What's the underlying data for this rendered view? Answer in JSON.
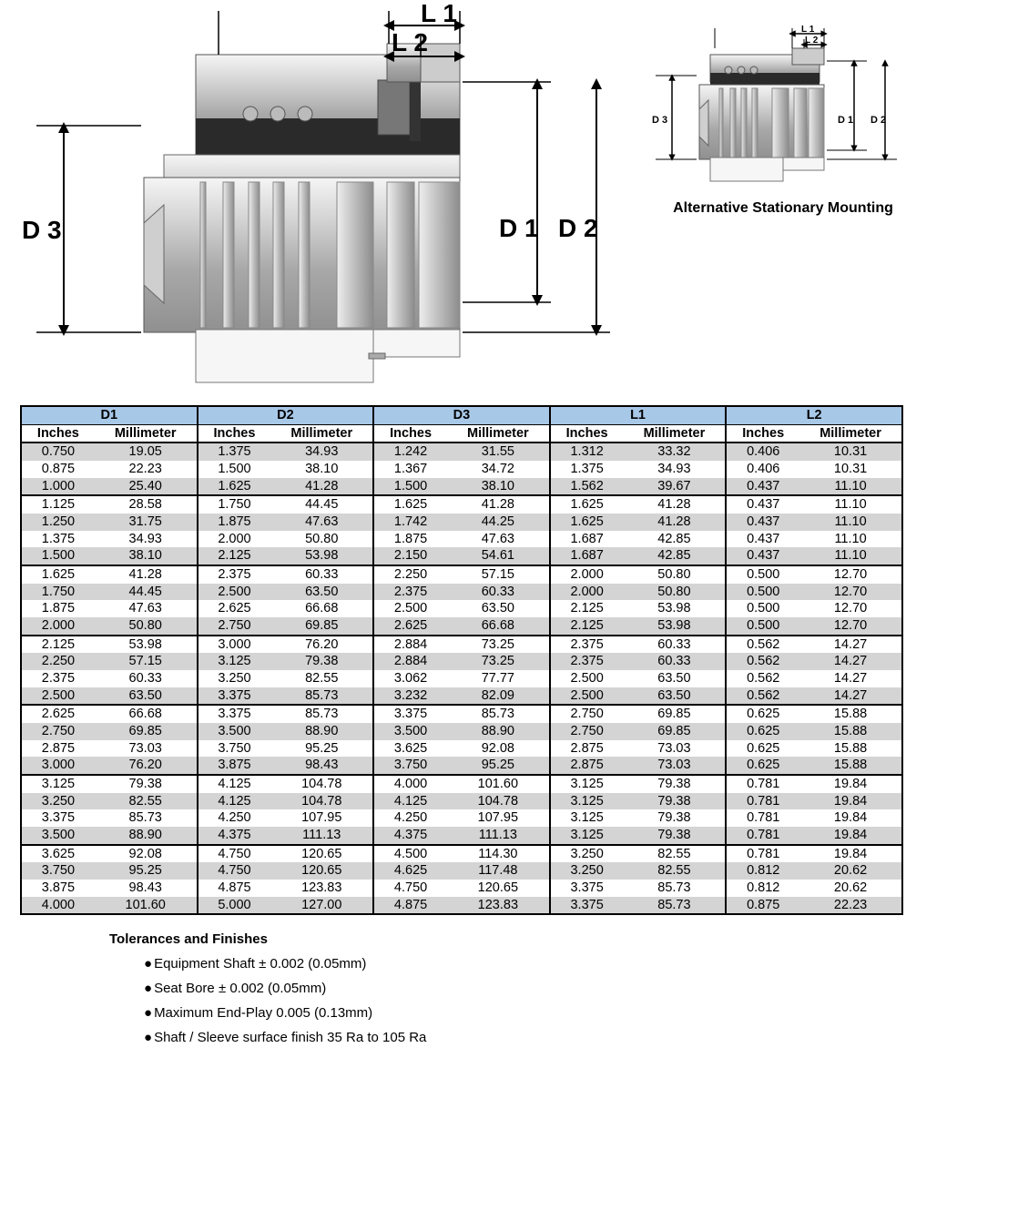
{
  "diagram": {
    "labels": {
      "D1": "D 1",
      "D2": "D 2",
      "D3": "D 3",
      "L1": "L 1",
      "L2": "L 2"
    },
    "alt_labels": {
      "D1": "D 1",
      "D2": "D 2",
      "D3": "D 3",
      "L1": "L 1",
      "L2": "L 2"
    },
    "alt_caption": "Alternative Stationary Mounting",
    "colors": {
      "metal_light": "#e8e8e8",
      "metal_mid": "#b8b8b8",
      "metal_dark": "#888888",
      "outline": "#555555",
      "black": "#000000"
    }
  },
  "table": {
    "header_bg": "#a8c8e8",
    "shaded_bg": "#d4d4d4",
    "columns": [
      "D1",
      "D2",
      "D3",
      "L1",
      "L2"
    ],
    "subcolumns": [
      "Inches",
      "Millimeter"
    ],
    "groups": [
      [
        [
          "0.750",
          "19.05",
          "1.375",
          "34.93",
          "1.242",
          "31.55",
          "1.312",
          "33.32",
          "0.406",
          "10.31"
        ],
        [
          "0.875",
          "22.23",
          "1.500",
          "38.10",
          "1.367",
          "34.72",
          "1.375",
          "34.93",
          "0.406",
          "10.31"
        ],
        [
          "1.000",
          "25.40",
          "1.625",
          "41.28",
          "1.500",
          "38.10",
          "1.562",
          "39.67",
          "0.437",
          "11.10"
        ]
      ],
      [
        [
          "1.125",
          "28.58",
          "1.750",
          "44.45",
          "1.625",
          "41.28",
          "1.625",
          "41.28",
          "0.437",
          "11.10"
        ],
        [
          "1.250",
          "31.75",
          "1.875",
          "47.63",
          "1.742",
          "44.25",
          "1.625",
          "41.28",
          "0.437",
          "11.10"
        ],
        [
          "1.375",
          "34.93",
          "2.000",
          "50.80",
          "1.875",
          "47.63",
          "1.687",
          "42.85",
          "0.437",
          "11.10"
        ],
        [
          "1.500",
          "38.10",
          "2.125",
          "53.98",
          "2.150",
          "54.61",
          "1.687",
          "42.85",
          "0.437",
          "11.10"
        ]
      ],
      [
        [
          "1.625",
          "41.28",
          "2.375",
          "60.33",
          "2.250",
          "57.15",
          "2.000",
          "50.80",
          "0.500",
          "12.70"
        ],
        [
          "1.750",
          "44.45",
          "2.500",
          "63.50",
          "2.375",
          "60.33",
          "2.000",
          "50.80",
          "0.500",
          "12.70"
        ],
        [
          "1.875",
          "47.63",
          "2.625",
          "66.68",
          "2.500",
          "63.50",
          "2.125",
          "53.98",
          "0.500",
          "12.70"
        ],
        [
          "2.000",
          "50.80",
          "2.750",
          "69.85",
          "2.625",
          "66.68",
          "2.125",
          "53.98",
          "0.500",
          "12.70"
        ]
      ],
      [
        [
          "2.125",
          "53.98",
          "3.000",
          "76.20",
          "2.884",
          "73.25",
          "2.375",
          "60.33",
          "0.562",
          "14.27"
        ],
        [
          "2.250",
          "57.15",
          "3.125",
          "79.38",
          "2.884",
          "73.25",
          "2.375",
          "60.33",
          "0.562",
          "14.27"
        ],
        [
          "2.375",
          "60.33",
          "3.250",
          "82.55",
          "3.062",
          "77.77",
          "2.500",
          "63.50",
          "0.562",
          "14.27"
        ],
        [
          "2.500",
          "63.50",
          "3.375",
          "85.73",
          "3.232",
          "82.09",
          "2.500",
          "63.50",
          "0.562",
          "14.27"
        ]
      ],
      [
        [
          "2.625",
          "66.68",
          "3.375",
          "85.73",
          "3.375",
          "85.73",
          "2.750",
          "69.85",
          "0.625",
          "15.88"
        ],
        [
          "2.750",
          "69.85",
          "3.500",
          "88.90",
          "3.500",
          "88.90",
          "2.750",
          "69.85",
          "0.625",
          "15.88"
        ],
        [
          "2.875",
          "73.03",
          "3.750",
          "95.25",
          "3.625",
          "92.08",
          "2.875",
          "73.03",
          "0.625",
          "15.88"
        ],
        [
          "3.000",
          "76.20",
          "3.875",
          "98.43",
          "3.750",
          "95.25",
          "2.875",
          "73.03",
          "0.625",
          "15.88"
        ]
      ],
      [
        [
          "3.125",
          "79.38",
          "4.125",
          "104.78",
          "4.000",
          "101.60",
          "3.125",
          "79.38",
          "0.781",
          "19.84"
        ],
        [
          "3.250",
          "82.55",
          "4.125",
          "104.78",
          "4.125",
          "104.78",
          "3.125",
          "79.38",
          "0.781",
          "19.84"
        ],
        [
          "3.375",
          "85.73",
          "4.250",
          "107.95",
          "4.250",
          "107.95",
          "3.125",
          "79.38",
          "0.781",
          "19.84"
        ],
        [
          "3.500",
          "88.90",
          "4.375",
          "111.13",
          "4.375",
          "111.13",
          "3.125",
          "79.38",
          "0.781",
          "19.84"
        ]
      ],
      [
        [
          "3.625",
          "92.08",
          "4.750",
          "120.65",
          "4.500",
          "114.30",
          "3.250",
          "82.55",
          "0.781",
          "19.84"
        ],
        [
          "3.750",
          "95.25",
          "4.750",
          "120.65",
          "4.625",
          "117.48",
          "3.250",
          "82.55",
          "0.812",
          "20.62"
        ],
        [
          "3.875",
          "98.43",
          "4.875",
          "123.83",
          "4.750",
          "120.65",
          "3.375",
          "85.73",
          "0.812",
          "20.62"
        ],
        [
          "4.000",
          "101.60",
          "5.000",
          "127.00",
          "4.875",
          "123.83",
          "3.375",
          "85.73",
          "0.875",
          "22.23"
        ]
      ]
    ]
  },
  "notes": {
    "title": "Tolerances and Finishes",
    "items": [
      "Equipment Shaft ± 0.002 (0.05mm)",
      "Seat Bore ± 0.002 (0.05mm)",
      "Maximum End-Play 0.005 (0.13mm)",
      "Shaft / Sleeve surface finish 35 Ra to 105 Ra"
    ]
  }
}
